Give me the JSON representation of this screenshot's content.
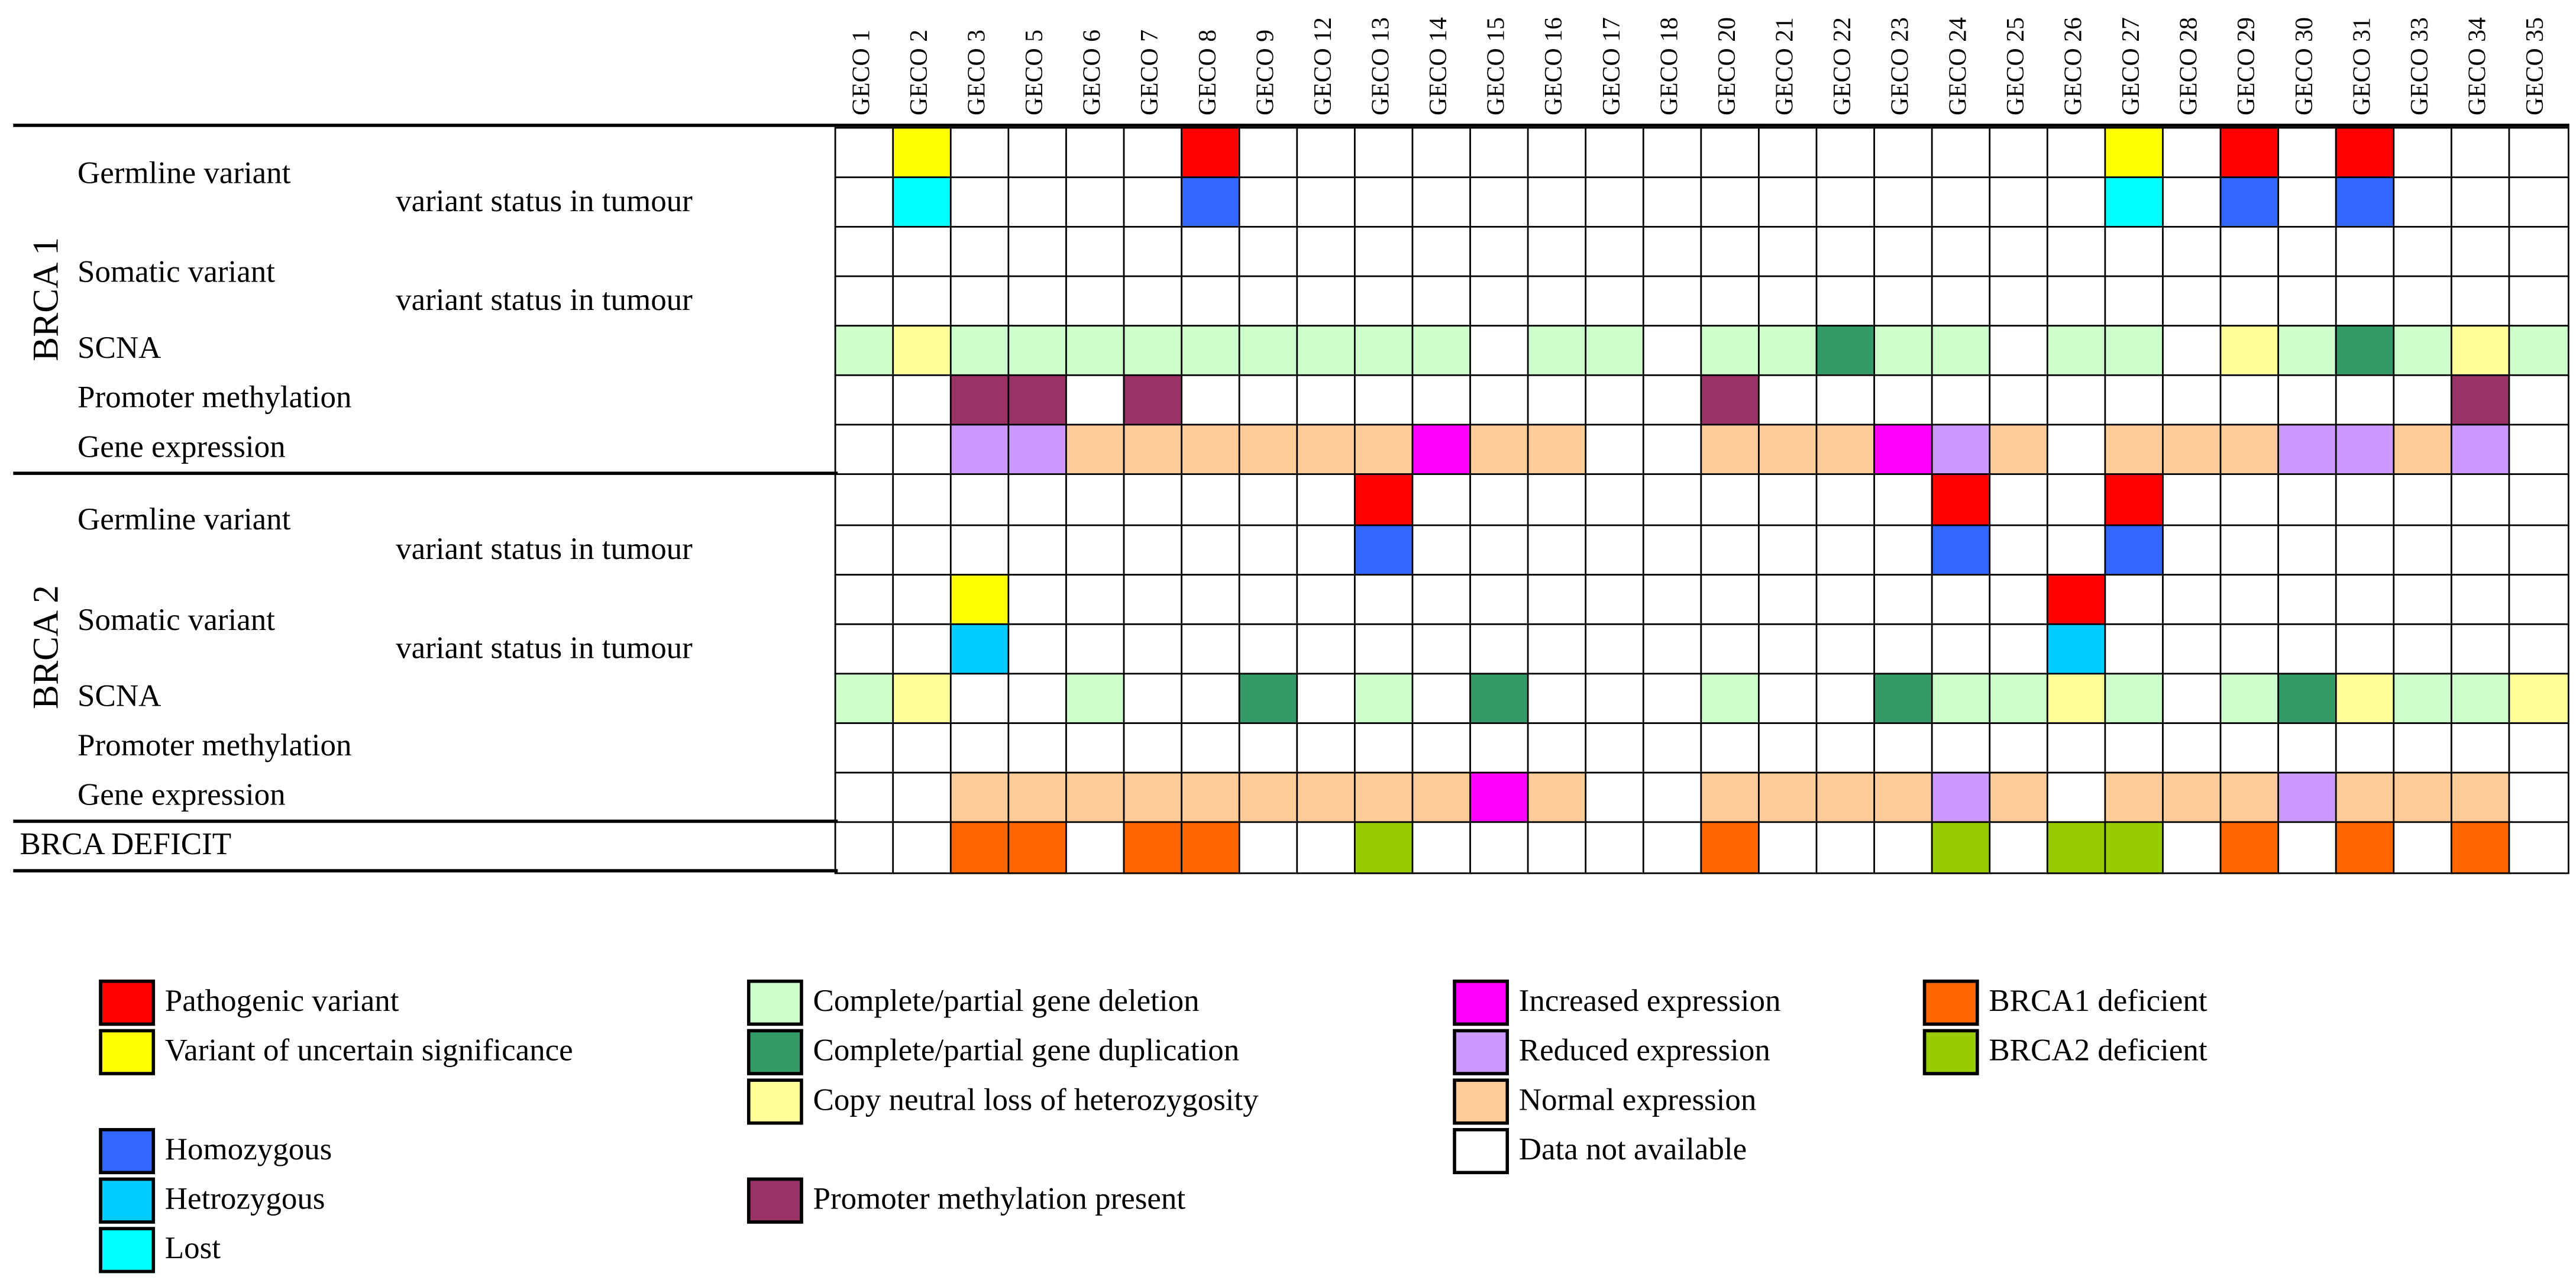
{
  "chart_data": {
    "type": "heatmap",
    "columns": [
      "GECO 1",
      "GECO 2",
      "GECO 3",
      "GECO 5",
      "GECO 6",
      "GECO 7",
      "GECO 8",
      "GECO 9",
      "GECO 12",
      "GECO 13",
      "GECO 14",
      "GECO 15",
      "GECO 16",
      "GECO 17",
      "GECO 18",
      "GECO 20",
      "GECO 21",
      "GECO 22",
      "GECO 23",
      "GECO 24",
      "GECO 25",
      "GECO 26",
      "GECO 27",
      "GECO 28",
      "GECO 29",
      "GECO 30",
      "GECO 31",
      "GECO 33",
      "GECO 34",
      "GECO 35"
    ],
    "genes": [
      {
        "name": "BRCA 1",
        "rows": [
          {
            "label": "Germline variant",
            "codes": "0V0000P000000000000000V0P0P000"
          },
          {
            "label": "variant status in tumour",
            "sub": true,
            "codes": "0L0000O000000000000000L0O0O000"
          },
          {
            "label": "Somatic variant",
            "codes": "000000000000000000000000000000"
          },
          {
            "label": "variant status in tumour",
            "sub": true,
            "codes": "000000000000000000000000000000"
          },
          {
            "label": "SCNA",
            "codes": "DCDDDDDDDDD0DD0DDGDD0DD0CDGDCD"
          },
          {
            "label": "Promoter methylation",
            "codes": "00MM0M000000000M000000000000M0"
          },
          {
            "label": "Gene expression",
            "codes": "00RRNNNNNNINN00NNNIRN0NNNRRNR0"
          }
        ]
      },
      {
        "name": "BRCA 2",
        "rows": [
          {
            "label": "Germline variant",
            "codes": "000000000P000000000P00P0000000"
          },
          {
            "label": "variant status in tumour",
            "sub": true,
            "codes": "000000000O000000000O00O0000000"
          },
          {
            "label": "Somatic variant",
            "codes": "00V000000000000000000P00000000"
          },
          {
            "label": "variant status in tumour",
            "sub": true,
            "codes": "00E000000000000000000E00000000"
          },
          {
            "label": "SCNA",
            "codes": "DC00D00G0D0G000D00GDDCD0DGCDDC"
          },
          {
            "label": "Promoter methylation",
            "codes": "000000000000000000000000000000"
          },
          {
            "label": "Gene expression",
            "codes": "00NNNNNNNNNIN00NNNNRN0NNNRNNN0"
          }
        ]
      }
    ],
    "deficit": {
      "label": "BRCA DEFICIT",
      "codes": "00AA0AA00B00000A000B0BB0A0A0A0"
    },
    "legend": {
      "P": {
        "label": "Pathogenic variant",
        "color": "#FF0000"
      },
      "V": {
        "label": "Variant of uncertain significance",
        "color": "#FFFF00"
      },
      "O": {
        "label": "Homozygous",
        "color": "#3366FF"
      },
      "E": {
        "label": "Hetrozygous",
        "color": "#00CCFF"
      },
      "L": {
        "label": "Lost",
        "color": "#00FFFF"
      },
      "D": {
        "label": "Complete/partial gene deletion",
        "color": "#CCFFCC"
      },
      "G": {
        "label": "Complete/partial gene duplication",
        "color": "#339966"
      },
      "C": {
        "label": "Copy neutral loss of heterozygosity",
        "color": "#FFFF99"
      },
      "M": {
        "label": "Promoter methylation present",
        "color": "#993366"
      },
      "I": {
        "label": "Increased expression",
        "color": "#FF00FF"
      },
      "R": {
        "label": "Reduced expression",
        "color": "#CC99FF"
      },
      "N": {
        "label": "Normal expression",
        "color": "#FFCC99"
      },
      "0": {
        "label": "Data not available",
        "color": "#FFFFFF"
      },
      "A": {
        "label": "BRCA1 deficient",
        "color": "#FF6600"
      },
      "B": {
        "label": "BRCA2 deficient",
        "color": "#99CC00"
      }
    }
  }
}
